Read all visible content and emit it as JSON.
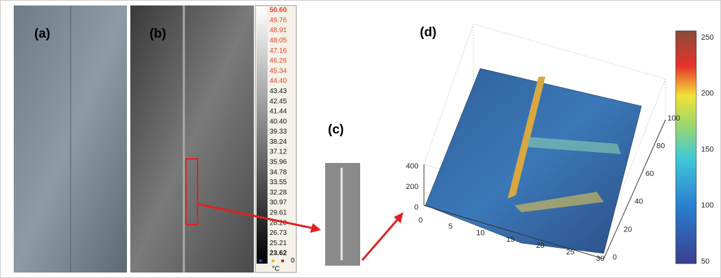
{
  "panels": {
    "a": "(a)",
    "b": "(b)",
    "c": "(c)",
    "d": "(d)"
  },
  "thermal_scale": {
    "values": [
      "50.60",
      "49.76",
      "48.91",
      "48.05",
      "47.16",
      "46.26",
      "45.34",
      "44.40",
      "43.43",
      "42.45",
      "41.44",
      "40.40",
      "39.33",
      "38.24",
      "37.12",
      "35.96",
      "34.78",
      "33.55",
      "32.28",
      "30.97",
      "29.61",
      "28.20",
      "26.73",
      "25.21",
      "23.62"
    ],
    "indicator": "0",
    "unit": "°C"
  },
  "surface_plot": {
    "z_ticks": [
      "0",
      "200",
      "400"
    ],
    "x_ticks": [
      "0",
      "5",
      "10",
      "15",
      "20",
      "25",
      "30"
    ],
    "y_ticks": [
      "0",
      "20",
      "40",
      "60",
      "80",
      "100"
    ],
    "colorbar_ticks": [
      "50",
      "100",
      "150",
      "200",
      "250"
    ]
  }
}
